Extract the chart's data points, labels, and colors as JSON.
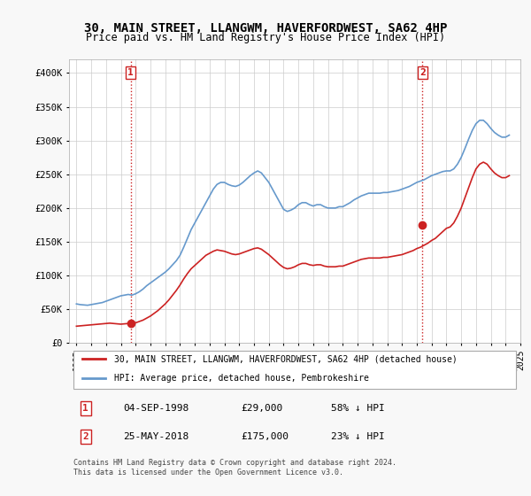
{
  "title": "30, MAIN STREET, LLANGWM, HAVERFORDWEST, SA62 4HP",
  "subtitle": "Price paid vs. HM Land Registry's House Price Index (HPI)",
  "xlabel": "",
  "ylabel": "",
  "ylim": [
    0,
    420000
  ],
  "yticks": [
    0,
    50000,
    100000,
    150000,
    200000,
    250000,
    300000,
    350000,
    400000
  ],
  "ytick_labels": [
    "£0",
    "£50K",
    "£100K",
    "£150K",
    "£200K",
    "£250K",
    "£300K",
    "£350K",
    "£400K"
  ],
  "hpi_color": "#6699cc",
  "price_color": "#cc2222",
  "marker1_date": 1998.67,
  "marker1_price": 29000,
  "marker2_date": 2018.39,
  "marker2_price": 175000,
  "legend_label_red": "30, MAIN STREET, LLANGWM, HAVERFORDWEST, SA62 4HP (detached house)",
  "legend_label_blue": "HPI: Average price, detached house, Pembrokeshire",
  "annotation1_label": "1",
  "annotation2_label": "2",
  "table_row1": [
    "1",
    "04-SEP-1998",
    "£29,000",
    "58% ↓ HPI"
  ],
  "table_row2": [
    "2",
    "25-MAY-2018",
    "£175,000",
    "23% ↓ HPI"
  ],
  "footer": "Contains HM Land Registry data © Crown copyright and database right 2024.\nThis data is licensed under the Open Government Licence v3.0.",
  "background_color": "#f8f8f8",
  "plot_bg_color": "#ffffff",
  "hpi_data_x": [
    1995.0,
    1995.25,
    1995.5,
    1995.75,
    1996.0,
    1996.25,
    1996.5,
    1996.75,
    1997.0,
    1997.25,
    1997.5,
    1997.75,
    1998.0,
    1998.25,
    1998.5,
    1998.75,
    1999.0,
    1999.25,
    1999.5,
    1999.75,
    2000.0,
    2000.25,
    2000.5,
    2000.75,
    2001.0,
    2001.25,
    2001.5,
    2001.75,
    2002.0,
    2002.25,
    2002.5,
    2002.75,
    2003.0,
    2003.25,
    2003.5,
    2003.75,
    2004.0,
    2004.25,
    2004.5,
    2004.75,
    2005.0,
    2005.25,
    2005.5,
    2005.75,
    2006.0,
    2006.25,
    2006.5,
    2006.75,
    2007.0,
    2007.25,
    2007.5,
    2007.75,
    2008.0,
    2008.25,
    2008.5,
    2008.75,
    2009.0,
    2009.25,
    2009.5,
    2009.75,
    2010.0,
    2010.25,
    2010.5,
    2010.75,
    2011.0,
    2011.25,
    2011.5,
    2011.75,
    2012.0,
    2012.25,
    2012.5,
    2012.75,
    2013.0,
    2013.25,
    2013.5,
    2013.75,
    2014.0,
    2014.25,
    2014.5,
    2014.75,
    2015.0,
    2015.25,
    2015.5,
    2015.75,
    2016.0,
    2016.25,
    2016.5,
    2016.75,
    2017.0,
    2017.25,
    2017.5,
    2017.75,
    2018.0,
    2018.25,
    2018.5,
    2018.75,
    2019.0,
    2019.25,
    2019.5,
    2019.75,
    2020.0,
    2020.25,
    2020.5,
    2020.75,
    2021.0,
    2021.25,
    2021.5,
    2021.75,
    2022.0,
    2022.25,
    2022.5,
    2022.75,
    2023.0,
    2023.25,
    2023.5,
    2023.75,
    2024.0,
    2024.25
  ],
  "hpi_data_y": [
    58000,
    57000,
    56500,
    56000,
    57000,
    58000,
    59000,
    60000,
    62000,
    64000,
    66000,
    68000,
    70000,
    71000,
    72000,
    71000,
    73000,
    76000,
    80000,
    85000,
    89000,
    93000,
    97000,
    101000,
    105000,
    110000,
    116000,
    122000,
    130000,
    142000,
    155000,
    168000,
    178000,
    188000,
    198000,
    208000,
    218000,
    228000,
    235000,
    238000,
    238000,
    235000,
    233000,
    232000,
    234000,
    238000,
    243000,
    248000,
    252000,
    255000,
    252000,
    245000,
    238000,
    228000,
    218000,
    208000,
    198000,
    195000,
    197000,
    200000,
    205000,
    208000,
    208000,
    205000,
    203000,
    205000,
    205000,
    202000,
    200000,
    200000,
    200000,
    202000,
    202000,
    205000,
    208000,
    212000,
    215000,
    218000,
    220000,
    222000,
    222000,
    222000,
    222000,
    223000,
    223000,
    224000,
    225000,
    226000,
    228000,
    230000,
    232000,
    235000,
    238000,
    240000,
    242000,
    245000,
    248000,
    250000,
    252000,
    254000,
    255000,
    255000,
    258000,
    265000,
    275000,
    288000,
    302000,
    315000,
    325000,
    330000,
    330000,
    325000,
    318000,
    312000,
    308000,
    305000,
    305000,
    308000
  ],
  "price_data_x": [
    1995.0,
    1995.25,
    1995.5,
    1995.75,
    1996.0,
    1996.25,
    1996.5,
    1996.75,
    1997.0,
    1997.25,
    1997.5,
    1997.75,
    1998.0,
    1998.25,
    1998.5,
    1998.75,
    1999.0,
    1999.25,
    1999.5,
    1999.75,
    2000.0,
    2000.25,
    2000.5,
    2000.75,
    2001.0,
    2001.25,
    2001.5,
    2001.75,
    2002.0,
    2002.25,
    2002.5,
    2002.75,
    2003.0,
    2003.25,
    2003.5,
    2003.75,
    2004.0,
    2004.25,
    2004.5,
    2004.75,
    2005.0,
    2005.25,
    2005.5,
    2005.75,
    2006.0,
    2006.25,
    2006.5,
    2006.75,
    2007.0,
    2007.25,
    2007.5,
    2007.75,
    2008.0,
    2008.25,
    2008.5,
    2008.75,
    2009.0,
    2009.25,
    2009.5,
    2009.75,
    2010.0,
    2010.25,
    2010.5,
    2010.75,
    2011.0,
    2011.25,
    2011.5,
    2011.75,
    2012.0,
    2012.25,
    2012.5,
    2012.75,
    2013.0,
    2013.25,
    2013.5,
    2013.75,
    2014.0,
    2014.25,
    2014.5,
    2014.75,
    2015.0,
    2015.25,
    2015.5,
    2015.75,
    2016.0,
    2016.25,
    2016.5,
    2016.75,
    2017.0,
    2017.25,
    2017.5,
    2017.75,
    2018.0,
    2018.25,
    2018.5,
    2018.75,
    2019.0,
    2019.25,
    2019.5,
    2019.75,
    2020.0,
    2020.25,
    2020.5,
    2020.75,
    2021.0,
    2021.25,
    2021.5,
    2021.75,
    2022.0,
    2022.25,
    2022.5,
    2022.75,
    2023.0,
    2023.25,
    2023.5,
    2023.75,
    2024.0,
    2024.25
  ],
  "price_data_y": [
    25000,
    25500,
    26000,
    26500,
    27000,
    27500,
    28000,
    28500,
    29000,
    29500,
    29000,
    28500,
    28000,
    28500,
    29000,
    29000,
    30000,
    32000,
    34000,
    37000,
    40000,
    44000,
    48000,
    53000,
    58000,
    64000,
    71000,
    78000,
    86000,
    95000,
    103000,
    110000,
    115000,
    120000,
    125000,
    130000,
    133000,
    136000,
    138000,
    137000,
    136000,
    134000,
    132000,
    131000,
    132000,
    134000,
    136000,
    138000,
    140000,
    141000,
    139000,
    135000,
    131000,
    126000,
    121000,
    116000,
    112000,
    110000,
    111000,
    113000,
    116000,
    118000,
    118000,
    116000,
    115000,
    116000,
    116000,
    114000,
    113000,
    113000,
    113000,
    114000,
    114000,
    116000,
    118000,
    120000,
    122000,
    124000,
    125000,
    126000,
    126000,
    126000,
    126000,
    127000,
    127000,
    128000,
    129000,
    130000,
    131000,
    133000,
    135000,
    137000,
    140000,
    142000,
    145000,
    148000,
    152000,
    155000,
    160000,
    165000,
    170000,
    172000,
    178000,
    188000,
    200000,
    215000,
    230000,
    245000,
    258000,
    265000,
    268000,
    265000,
    258000,
    252000,
    248000,
    245000,
    245000,
    248000
  ]
}
